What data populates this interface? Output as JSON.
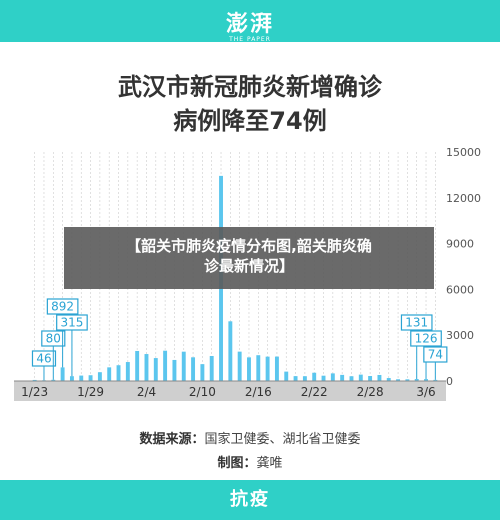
{
  "header": {
    "logo": "澎湃",
    "logo_sub": "THE PAPER"
  },
  "title_lines": [
    "武汉市新冠肺炎新增确诊",
    "病例降至74例"
  ],
  "overlay_lines": [
    "【韶关市肺炎疫情分布图,韶关肺炎确",
    "诊最新情况】"
  ],
  "source": {
    "label1": "数据来源：",
    "text1": "国家卫健委、湖北省卫健委",
    "label2": "制图：",
    "text2": "龚唯"
  },
  "footer": {
    "text": "抗疫"
  },
  "colors": {
    "teal": "#2fd0c7",
    "bar": "#5bc6ee",
    "grid": "#cccccc",
    "label": "#2aa3d3"
  },
  "chart_data": {
    "type": "bar",
    "title": "武汉市新冠肺炎新增确诊病例降至74例",
    "x_tick_labels": [
      "1/23",
      "1/29",
      "2/4",
      "2/10",
      "2/16",
      "2/22",
      "2/28",
      "3/6"
    ],
    "y_tick_labels": [
      "15000",
      "12000",
      "9000",
      "6000",
      "3000",
      "0"
    ],
    "ylim": [
      0,
      15000
    ],
    "y_ticks": [
      0,
      3000,
      6000,
      9000,
      12000,
      15000
    ],
    "grid": true,
    "categories": [
      "1/23",
      "1/24",
      "1/25",
      "1/26",
      "1/27",
      "1/28",
      "1/29",
      "1/30",
      "1/31",
      "2/1",
      "2/2",
      "2/3",
      "2/4",
      "2/5",
      "2/6",
      "2/7",
      "2/8",
      "2/9",
      "2/10",
      "2/11",
      "2/12",
      "2/13",
      "2/14",
      "2/15",
      "2/16",
      "2/17",
      "2/18",
      "2/19",
      "2/20",
      "2/21",
      "2/22",
      "2/23",
      "2/24",
      "2/25",
      "2/26",
      "2/27",
      "2/28",
      "2/29",
      "3/1",
      "3/2",
      "3/3",
      "3/4",
      "3/5",
      "3/6"
    ],
    "values": [
      70,
      46,
      80,
      892,
      315,
      356,
      378,
      576,
      894,
      1033,
      1242,
      1967,
      1766,
      1501,
      1985,
      1379,
      1921,
      1552,
      1104,
      1638,
      13436,
      3910,
      1923,
      1548,
      1690,
      1596,
      1600,
      615,
      319,
      314,
      541,
      348,
      499,
      401,
      313,
      418,
      327,
      395,
      193,
      114,
      111,
      131,
      126,
      74
    ],
    "annotations": [
      {
        "category": "1/24",
        "label": "46"
      },
      {
        "category": "1/25",
        "label": "80"
      },
      {
        "category": "1/26",
        "label": "892"
      },
      {
        "category": "1/27",
        "label": "315"
      },
      {
        "category": "3/4",
        "label": "131"
      },
      {
        "category": "3/5",
        "label": "126"
      },
      {
        "category": "3/6",
        "label": "74"
      }
    ]
  }
}
